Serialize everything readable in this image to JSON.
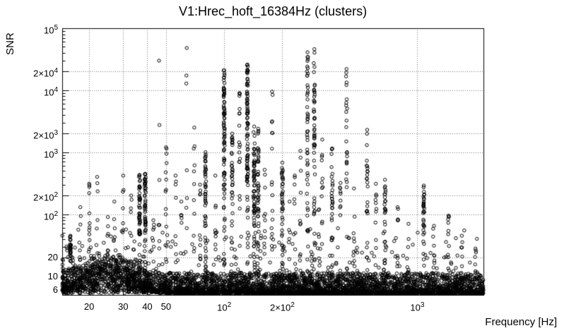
{
  "chart_data": {
    "type": "scatter",
    "title": "V1:Hrec_hoft_16384Hz (clusters)",
    "xlabel": "Frequency [Hz]",
    "ylabel": "SNR",
    "x_scale": "log",
    "y_scale": "log",
    "xlim": [
      14.5,
      2200
    ],
    "ylim": [
      5.0,
      100000
    ],
    "grid": "dotted",
    "grid_color": "#777777",
    "marker": {
      "shape": "open-circle",
      "color": "#000000",
      "radius_px": 2.2
    },
    "seed": 7,
    "x_ticks": [
      {
        "v": 20,
        "label": "20"
      },
      {
        "v": 30,
        "label": "30"
      },
      {
        "v": 40,
        "label": "40"
      },
      {
        "v": 50,
        "label": "50"
      },
      {
        "v": 100,
        "label": "10^2"
      },
      {
        "v": 200,
        "label": "2×10^2"
      },
      {
        "v": 1000,
        "label": "10^3"
      }
    ],
    "y_ticks": [
      {
        "v": 6,
        "label": "6"
      },
      {
        "v": 10,
        "label": "10"
      },
      {
        "v": 20,
        "label": "20"
      },
      {
        "v": 100,
        "label": "10^2"
      },
      {
        "v": 200,
        "label": "2×10^2"
      },
      {
        "v": 1000,
        "label": "10^3"
      },
      {
        "v": 2000,
        "label": "2×10^3"
      },
      {
        "v": 10000,
        "label": "10^4"
      },
      {
        "v": 20000,
        "label": "2×10^4"
      },
      {
        "v": 100000,
        "label": "10^5"
      }
    ],
    "noise_floor": {
      "description": "dense band of triggers along the bottom of the plot",
      "snr_min": 5.3,
      "snr_typical_max": 12,
      "bulge": {
        "f_center": 25,
        "f_range": [
          16,
          40
        ],
        "snr_max": 22
      },
      "n_points": 4200
    },
    "scatter_background": {
      "description": "isolated triggers above the floor, denser at low frequency",
      "n_points": 230,
      "snr_range": [
        11,
        60
      ]
    },
    "spikes": [
      {
        "f": 16,
        "snr_max": 45,
        "n": 28,
        "dense": true
      },
      {
        "f": 18,
        "snr_max": 130,
        "n": 10,
        "dense": false
      },
      {
        "f": 20,
        "snr_max": 310,
        "n": 10,
        "dense": false
      },
      {
        "f": 22,
        "snr_max": 400,
        "n": 9,
        "dense": false
      },
      {
        "f": 25,
        "snr_max": 90,
        "n": 7,
        "dense": false
      },
      {
        "f": 27,
        "snr_max": 160,
        "n": 6,
        "dense": false
      },
      {
        "f": 30,
        "snr_max": 420,
        "n": 8,
        "dense": false
      },
      {
        "f": 33,
        "snr_max": 200,
        "n": 6,
        "dense": false
      },
      {
        "f": 36.5,
        "snr_max": 430,
        "n": 55,
        "dense": true
      },
      {
        "f": 39,
        "snr_max": 450,
        "n": 60,
        "dense": true
      },
      {
        "f": 43,
        "snr_max": 80,
        "n": 8,
        "dense": false
      },
      {
        "f": 46,
        "snr_max": 30000,
        "n": 6,
        "dense": false
      },
      {
        "f": 50,
        "snr_max": 1200,
        "n": 14,
        "dense": false
      },
      {
        "f": 56,
        "snr_max": 420,
        "n": 9,
        "dense": false
      },
      {
        "f": 60,
        "snr_max": 160,
        "n": 6,
        "dense": false
      },
      {
        "f": 64,
        "snr_max": 48000,
        "n": 6,
        "dense": false
      },
      {
        "f": 70,
        "snr_max": 2500,
        "n": 10,
        "dense": false
      },
      {
        "f": 75,
        "snr_max": 300,
        "n": 7,
        "dense": false
      },
      {
        "f": 80,
        "snr_max": 1000,
        "n": 50,
        "dense": true
      },
      {
        "f": 90,
        "snr_max": 420,
        "n": 10,
        "dense": false
      },
      {
        "f": 100,
        "snr_max": 21000,
        "n": 85,
        "dense": true
      },
      {
        "f": 110,
        "snr_max": 2000,
        "n": 35,
        "dense": true
      },
      {
        "f": 120,
        "snr_max": 9000,
        "n": 18,
        "dense": false
      },
      {
        "f": 132,
        "snr_max": 26000,
        "n": 95,
        "dense": true
      },
      {
        "f": 143,
        "snr_max": 2600,
        "n": 70,
        "dense": true
      },
      {
        "f": 150,
        "snr_max": 2400,
        "n": 45,
        "dense": true
      },
      {
        "f": 162,
        "snr_max": 520,
        "n": 10,
        "dense": false
      },
      {
        "f": 177,
        "snr_max": 9500,
        "n": 16,
        "dense": false
      },
      {
        "f": 200,
        "snr_max": 680,
        "n": 40,
        "dense": true
      },
      {
        "f": 218,
        "snr_max": 160,
        "n": 8,
        "dense": false
      },
      {
        "f": 232,
        "snr_max": 420,
        "n": 8,
        "dense": false
      },
      {
        "f": 248,
        "snr_max": 1050,
        "n": 10,
        "dense": false
      },
      {
        "f": 270,
        "snr_max": 41000,
        "n": 50,
        "dense": true
      },
      {
        "f": 293,
        "snr_max": 46000,
        "n": 55,
        "dense": true
      },
      {
        "f": 310,
        "snr_max": 120,
        "n": 6,
        "dense": false
      },
      {
        "f": 322,
        "snr_max": 1600,
        "n": 12,
        "dense": false
      },
      {
        "f": 362,
        "snr_max": 1150,
        "n": 32,
        "dense": true
      },
      {
        "f": 400,
        "snr_max": 320,
        "n": 8,
        "dense": false
      },
      {
        "f": 430,
        "snr_max": 22000,
        "n": 26,
        "dense": true
      },
      {
        "f": 470,
        "snr_max": 260,
        "n": 9,
        "dense": false
      },
      {
        "f": 550,
        "snr_max": 2300,
        "n": 26,
        "dense": true
      },
      {
        "f": 610,
        "snr_max": 310,
        "n": 10,
        "dense": false
      },
      {
        "f": 680,
        "snr_max": 360,
        "n": 30,
        "dense": true
      },
      {
        "f": 790,
        "snr_max": 130,
        "n": 9,
        "dense": false
      },
      {
        "f": 900,
        "snr_max": 70,
        "n": 7,
        "dense": false
      },
      {
        "f": 1080,
        "snr_max": 290,
        "n": 36,
        "dense": true
      },
      {
        "f": 1220,
        "snr_max": 65,
        "n": 7,
        "dense": false
      },
      {
        "f": 1450,
        "snr_max": 95,
        "n": 11,
        "dense": false
      },
      {
        "f": 1700,
        "snr_max": 45,
        "n": 7,
        "dense": false
      },
      {
        "f": 2000,
        "snr_max": 28,
        "n": 6,
        "dense": false
      }
    ]
  }
}
